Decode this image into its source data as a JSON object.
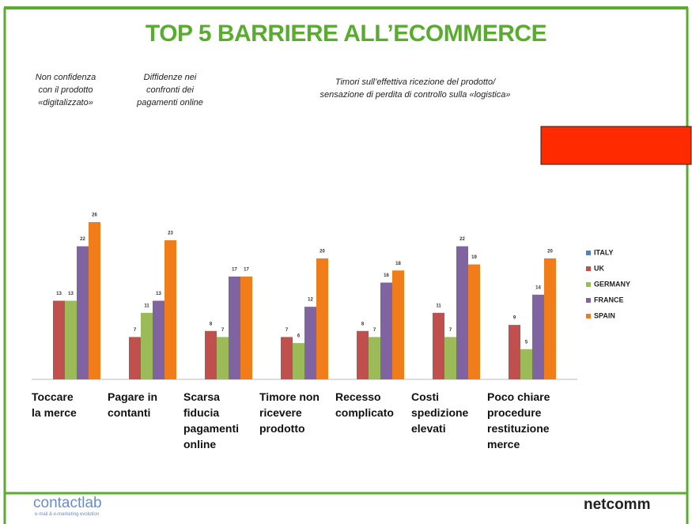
{
  "chart_data": {
    "type": "bar",
    "title": "TOP 5 BARRIERE ALL’ECOMMERCE",
    "annotations": [
      "Non confidenza\ncon il prodotto\n«digitalizzato»",
      "Diffidenze nei\nconfronti dei\npagamenti online",
      "Timori sull’effettiva  ricezione del prodotto/\nsensazione di perdita di controllo sulla «logistica»"
    ],
    "categories": [
      "Toccare\nla merce",
      "Pagare in\ncontanti",
      "Scarsa\nfiducia\npagamenti\nonline",
      "Timore non\nricevere\nprodotto",
      "Recesso\ncomplicato",
      "Costi\nspedizione\nelevati",
      "Poco chiare\nprocedure\nrestituzione\nmerce"
    ],
    "series": [
      {
        "name": "ITALY",
        "color": "#4f81bd",
        "values": [
          null,
          null,
          null,
          null,
          null,
          null,
          null
        ]
      },
      {
        "name": "UK",
        "color": "#c0504d",
        "values": [
          13,
          7,
          8,
          7,
          8,
          11,
          9
        ]
      },
      {
        "name": "GERMANY",
        "color": "#9bbb59",
        "values": [
          13,
          11,
          7,
          6,
          7,
          7,
          5
        ]
      },
      {
        "name": "FRANCE",
        "color": "#8064a2",
        "values": [
          22,
          13,
          17,
          12,
          16,
          22,
          14
        ]
      },
      {
        "name": "SPAIN",
        "color": "#f07c1a",
        "values": [
          26,
          23,
          17,
          20,
          18,
          19,
          20
        ]
      }
    ],
    "ylim": [
      0,
      26
    ],
    "legend": "right"
  },
  "footer": {
    "left_logo": "contactlab",
    "left_tagline": "e-mail & e-marketing evolution",
    "right_logo": "netcomm"
  }
}
